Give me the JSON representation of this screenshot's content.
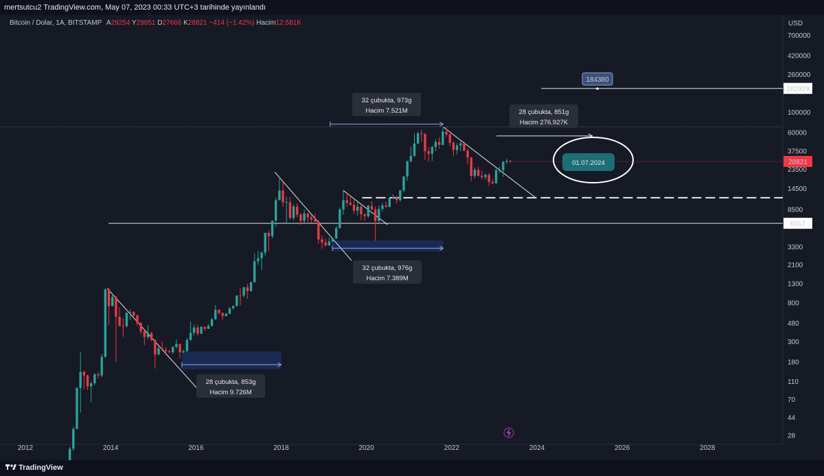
{
  "header": {
    "publisher_line": "mertsutcu2 TradingView.com, May 07, 2023 00:33 UTC+3 tarihinde yayınlandı"
  },
  "legend": {
    "symbol": "Bitcoin / Dolar, 1A, BITSTAMP",
    "open_label": "A",
    "open": "29254",
    "high_label": "Y",
    "high": "29851",
    "low_label": "D",
    "low": "27666",
    "close_label": "K",
    "close": "28821",
    "change": "−414 (−1.42%)",
    "volume_label": "Hacim",
    "volume": "12.581K"
  },
  "footer": {
    "brand": "TradingView"
  },
  "colors": {
    "background": "#161a25",
    "up": "#26a69a",
    "down": "#f23645",
    "line": "#e6e8ee",
    "range_fill": "#1f3a7a",
    "badge_teal": "#1e6e75"
  },
  "annotations": {
    "top_range": [
      "32 çubukta, 973g",
      "Hacim 7.521M"
    ],
    "right_range": [
      "28 çubukta, 851g",
      "Hacim 276.927K"
    ],
    "mid_range": [
      "32 çubukta, 976g",
      "Hacim 7.389M"
    ],
    "low_range": [
      "28 çubukta, 853g",
      "Hacim 9.726M"
    ],
    "target_price": "184380",
    "date_badge": "01.07.2024",
    "price_182929": "182929",
    "price_28821": "28821",
    "price_6017": "6017"
  },
  "chart_data": {
    "type": "candlestick",
    "scale": "log",
    "y_axis_title": "USD",
    "y_ticks": [
      "700000",
      "420000",
      "260000",
      "100000",
      "60000",
      "37500",
      "23500",
      "14500",
      "8500",
      "3300",
      "2100",
      "1300",
      "800",
      "480",
      "300",
      "180",
      "110",
      "70",
      "44",
      "28"
    ],
    "x_ticks": [
      "2012",
      "2014",
      "2016",
      "2018",
      "2020",
      "2022",
      "2024",
      "2026",
      "2028"
    ],
    "grid": false,
    "legend_position": "top-left",
    "series": [
      {
        "date": "2013-01",
        "open": 13,
        "high": 21,
        "low": 13,
        "close": 20
      },
      {
        "date": "2013-02",
        "open": 20,
        "high": 35,
        "low": 19,
        "close": 33
      },
      {
        "date": "2013-03",
        "open": 33,
        "high": 95,
        "low": 33,
        "close": 93
      },
      {
        "date": "2013-04",
        "open": 93,
        "high": 230,
        "low": 50,
        "close": 140
      },
      {
        "date": "2013-05",
        "open": 140,
        "high": 145,
        "low": 90,
        "close": 128
      },
      {
        "date": "2013-06",
        "open": 128,
        "high": 130,
        "low": 88,
        "close": 97
      },
      {
        "date": "2013-07",
        "open": 97,
        "high": 110,
        "low": 65,
        "close": 105
      },
      {
        "date": "2013-08",
        "open": 105,
        "high": 135,
        "low": 100,
        "close": 132
      },
      {
        "date": "2013-09",
        "open": 132,
        "high": 140,
        "low": 118,
        "close": 128
      },
      {
        "date": "2013-10",
        "open": 128,
        "high": 220,
        "low": 122,
        "close": 205
      },
      {
        "date": "2013-11",
        "open": 205,
        "high": 1160,
        "low": 200,
        "close": 1130
      },
      {
        "date": "2013-12",
        "open": 1130,
        "high": 1165,
        "low": 460,
        "close": 740
      },
      {
        "date": "2014-01",
        "open": 740,
        "high": 1020,
        "low": 740,
        "close": 935
      },
      {
        "date": "2014-02",
        "open": 935,
        "high": 955,
        "low": 180,
        "close": 565
      },
      {
        "date": "2014-03",
        "open": 565,
        "high": 720,
        "low": 440,
        "close": 450
      },
      {
        "date": "2014-04",
        "open": 450,
        "high": 545,
        "low": 340,
        "close": 445
      },
      {
        "date": "2014-05",
        "open": 445,
        "high": 630,
        "low": 430,
        "close": 625
      },
      {
        "date": "2014-06",
        "open": 625,
        "high": 680,
        "low": 520,
        "close": 635
      },
      {
        "date": "2014-07",
        "open": 635,
        "high": 650,
        "low": 560,
        "close": 585
      },
      {
        "date": "2014-08",
        "open": 585,
        "high": 600,
        "low": 450,
        "close": 480
      },
      {
        "date": "2014-09",
        "open": 480,
        "high": 500,
        "low": 365,
        "close": 390
      },
      {
        "date": "2014-10",
        "open": 390,
        "high": 415,
        "low": 275,
        "close": 338
      },
      {
        "date": "2014-11",
        "open": 338,
        "high": 460,
        "low": 320,
        "close": 375
      },
      {
        "date": "2014-12",
        "open": 375,
        "high": 385,
        "low": 305,
        "close": 315
      },
      {
        "date": "2015-01",
        "open": 315,
        "high": 320,
        "low": 152,
        "close": 218
      },
      {
        "date": "2015-02",
        "open": 218,
        "high": 265,
        "low": 212,
        "close": 254
      },
      {
        "date": "2015-03",
        "open": 254,
        "high": 300,
        "low": 240,
        "close": 244
      },
      {
        "date": "2015-04",
        "open": 244,
        "high": 260,
        "low": 215,
        "close": 236
      },
      {
        "date": "2015-05",
        "open": 236,
        "high": 245,
        "low": 226,
        "close": 230
      },
      {
        "date": "2015-06",
        "open": 230,
        "high": 268,
        "low": 220,
        "close": 263
      },
      {
        "date": "2015-07",
        "open": 263,
        "high": 318,
        "low": 252,
        "close": 284
      },
      {
        "date": "2015-08",
        "open": 284,
        "high": 285,
        "low": 198,
        "close": 230
      },
      {
        "date": "2015-09",
        "open": 230,
        "high": 245,
        "low": 226,
        "close": 236
      },
      {
        "date": "2015-10",
        "open": 236,
        "high": 330,
        "low": 235,
        "close": 314
      },
      {
        "date": "2015-11",
        "open": 314,
        "high": 500,
        "low": 305,
        "close": 377
      },
      {
        "date": "2015-12",
        "open": 377,
        "high": 465,
        "low": 350,
        "close": 430
      },
      {
        "date": "2016-01",
        "open": 430,
        "high": 462,
        "low": 350,
        "close": 368
      },
      {
        "date": "2016-02",
        "open": 368,
        "high": 445,
        "low": 365,
        "close": 437
      },
      {
        "date": "2016-03",
        "open": 437,
        "high": 440,
        "low": 396,
        "close": 416
      },
      {
        "date": "2016-04",
        "open": 416,
        "high": 466,
        "low": 415,
        "close": 448
      },
      {
        "date": "2016-05",
        "open": 448,
        "high": 550,
        "low": 440,
        "close": 530
      },
      {
        "date": "2016-06",
        "open": 530,
        "high": 760,
        "low": 525,
        "close": 673
      },
      {
        "date": "2016-07",
        "open": 673,
        "high": 685,
        "low": 600,
        "close": 624
      },
      {
        "date": "2016-08",
        "open": 624,
        "high": 625,
        "low": 525,
        "close": 575
      },
      {
        "date": "2016-09",
        "open": 575,
        "high": 625,
        "low": 570,
        "close": 609
      },
      {
        "date": "2016-10",
        "open": 609,
        "high": 720,
        "low": 605,
        "close": 701
      },
      {
        "date": "2016-11",
        "open": 701,
        "high": 755,
        "low": 680,
        "close": 742
      },
      {
        "date": "2016-12",
        "open": 742,
        "high": 975,
        "low": 740,
        "close": 966
      },
      {
        "date": "2017-01",
        "open": 966,
        "high": 1160,
        "low": 750,
        "close": 965
      },
      {
        "date": "2017-02",
        "open": 965,
        "high": 1200,
        "low": 920,
        "close": 1190
      },
      {
        "date": "2017-03",
        "open": 1190,
        "high": 1300,
        "low": 890,
        "close": 1080
      },
      {
        "date": "2017-04",
        "open": 1080,
        "high": 1380,
        "low": 1070,
        "close": 1350
      },
      {
        "date": "2017-05",
        "open": 1350,
        "high": 2800,
        "low": 1350,
        "close": 2300
      },
      {
        "date": "2017-06",
        "open": 2300,
        "high": 3000,
        "low": 2100,
        "close": 2480
      },
      {
        "date": "2017-07",
        "open": 2480,
        "high": 2950,
        "low": 1830,
        "close": 2870
      },
      {
        "date": "2017-08",
        "open": 2870,
        "high": 4500,
        "low": 2670,
        "close": 4730
      },
      {
        "date": "2017-09",
        "open": 4730,
        "high": 5000,
        "low": 2970,
        "close": 4340
      },
      {
        "date": "2017-10",
        "open": 4340,
        "high": 6450,
        "low": 4100,
        "close": 6450
      },
      {
        "date": "2017-11",
        "open": 6450,
        "high": 11500,
        "low": 5500,
        "close": 10800
      },
      {
        "date": "2017-12",
        "open": 10800,
        "high": 19700,
        "low": 10800,
        "close": 13800
      },
      {
        "date": "2018-01",
        "open": 13800,
        "high": 17200,
        "low": 9200,
        "close": 10200
      },
      {
        "date": "2018-02",
        "open": 10200,
        "high": 11800,
        "low": 5900,
        "close": 10300
      },
      {
        "date": "2018-03",
        "open": 10300,
        "high": 11700,
        "low": 6600,
        "close": 6900
      },
      {
        "date": "2018-04",
        "open": 6900,
        "high": 9750,
        "low": 6450,
        "close": 9200
      },
      {
        "date": "2018-05",
        "open": 9200,
        "high": 10000,
        "low": 7000,
        "close": 7500
      },
      {
        "date": "2018-06",
        "open": 7500,
        "high": 7750,
        "low": 5800,
        "close": 6400
      },
      {
        "date": "2018-07",
        "open": 6400,
        "high": 8500,
        "low": 6100,
        "close": 7700
      },
      {
        "date": "2018-08",
        "open": 7700,
        "high": 7800,
        "low": 5880,
        "close": 7000
      },
      {
        "date": "2018-09",
        "open": 7000,
        "high": 7400,
        "low": 6100,
        "close": 6600
      },
      {
        "date": "2018-10",
        "open": 6600,
        "high": 7600,
        "low": 6200,
        "close": 6300
      },
      {
        "date": "2018-11",
        "open": 6300,
        "high": 6600,
        "low": 3600,
        "close": 4000
      },
      {
        "date": "2018-12",
        "open": 4000,
        "high": 4400,
        "low": 3150,
        "close": 3700
      },
      {
        "date": "2019-01",
        "open": 3700,
        "high": 4100,
        "low": 3350,
        "close": 3440
      },
      {
        "date": "2019-02",
        "open": 3440,
        "high": 4200,
        "low": 3400,
        "close": 3800
      },
      {
        "date": "2019-03",
        "open": 3800,
        "high": 4150,
        "low": 3700,
        "close": 4100
      },
      {
        "date": "2019-04",
        "open": 4100,
        "high": 5600,
        "low": 4050,
        "close": 5300
      },
      {
        "date": "2019-05",
        "open": 5300,
        "high": 9000,
        "low": 5300,
        "close": 8550
      },
      {
        "date": "2019-06",
        "open": 8550,
        "high": 13900,
        "low": 7500,
        "close": 10800
      },
      {
        "date": "2019-07",
        "open": 10800,
        "high": 13200,
        "low": 9100,
        "close": 10100
      },
      {
        "date": "2019-08",
        "open": 10100,
        "high": 12300,
        "low": 9400,
        "close": 9600
      },
      {
        "date": "2019-09",
        "open": 9600,
        "high": 10900,
        "low": 7700,
        "close": 8300
      },
      {
        "date": "2019-10",
        "open": 8300,
        "high": 10400,
        "low": 7300,
        "close": 9150
      },
      {
        "date": "2019-11",
        "open": 9150,
        "high": 9500,
        "low": 6550,
        "close": 7550
      },
      {
        "date": "2019-12",
        "open": 7550,
        "high": 7750,
        "low": 6400,
        "close": 7200
      },
      {
        "date": "2020-01",
        "open": 7200,
        "high": 9600,
        "low": 6900,
        "close": 9350
      },
      {
        "date": "2020-02",
        "open": 9350,
        "high": 10500,
        "low": 8400,
        "close": 8550
      },
      {
        "date": "2020-03",
        "open": 8550,
        "high": 9200,
        "low": 3850,
        "close": 6400
      },
      {
        "date": "2020-04",
        "open": 6400,
        "high": 9450,
        "low": 6150,
        "close": 8650
      },
      {
        "date": "2020-05",
        "open": 8650,
        "high": 10100,
        "low": 8100,
        "close": 9450
      },
      {
        "date": "2020-06",
        "open": 9450,
        "high": 10400,
        "low": 8900,
        "close": 9150
      },
      {
        "date": "2020-07",
        "open": 9150,
        "high": 11450,
        "low": 8950,
        "close": 11350
      },
      {
        "date": "2020-08",
        "open": 11350,
        "high": 12500,
        "low": 11100,
        "close": 11650
      },
      {
        "date": "2020-09",
        "open": 11650,
        "high": 12100,
        "low": 9850,
        "close": 10800
      },
      {
        "date": "2020-10",
        "open": 10800,
        "high": 14100,
        "low": 10400,
        "close": 13800
      },
      {
        "date": "2020-11",
        "open": 13800,
        "high": 19500,
        "low": 13200,
        "close": 19700
      },
      {
        "date": "2020-12",
        "open": 19700,
        "high": 29300,
        "low": 17600,
        "close": 28950
      },
      {
        "date": "2021-01",
        "open": 28950,
        "high": 41950,
        "low": 28100,
        "close": 33100
      },
      {
        "date": "2021-02",
        "open": 33100,
        "high": 58300,
        "low": 32300,
        "close": 45200
      },
      {
        "date": "2021-03",
        "open": 45200,
        "high": 61700,
        "low": 44900,
        "close": 58800
      },
      {
        "date": "2021-04",
        "open": 58800,
        "high": 64900,
        "low": 47000,
        "close": 57700
      },
      {
        "date": "2021-05",
        "open": 57700,
        "high": 59500,
        "low": 30000,
        "close": 37300
      },
      {
        "date": "2021-06",
        "open": 37300,
        "high": 41300,
        "low": 28800,
        "close": 35000
      },
      {
        "date": "2021-07",
        "open": 35000,
        "high": 42300,
        "low": 29300,
        "close": 41500
      },
      {
        "date": "2021-08",
        "open": 41500,
        "high": 50500,
        "low": 37300,
        "close": 47100
      },
      {
        "date": "2021-09",
        "open": 47100,
        "high": 52900,
        "low": 39600,
        "close": 43800
      },
      {
        "date": "2021-10",
        "open": 43800,
        "high": 67000,
        "low": 43200,
        "close": 61300
      },
      {
        "date": "2021-11",
        "open": 61300,
        "high": 69000,
        "low": 53300,
        "close": 57000
      },
      {
        "date": "2021-12",
        "open": 57000,
        "high": 59000,
        "low": 42000,
        "close": 46200
      },
      {
        "date": "2022-01",
        "open": 46200,
        "high": 47900,
        "low": 33000,
        "close": 38500
      },
      {
        "date": "2022-02",
        "open": 38500,
        "high": 45800,
        "low": 34300,
        "close": 43200
      },
      {
        "date": "2022-03",
        "open": 43200,
        "high": 48200,
        "low": 37200,
        "close": 45500
      },
      {
        "date": "2022-04",
        "open": 45500,
        "high": 47400,
        "low": 37600,
        "close": 37700
      },
      {
        "date": "2022-05",
        "open": 37700,
        "high": 40000,
        "low": 26700,
        "close": 31800
      },
      {
        "date": "2022-06",
        "open": 31800,
        "high": 31900,
        "low": 17600,
        "close": 19950
      },
      {
        "date": "2022-07",
        "open": 19950,
        "high": 24700,
        "low": 18800,
        "close": 23300
      },
      {
        "date": "2022-08",
        "open": 23300,
        "high": 25200,
        "low": 19600,
        "close": 20050
      },
      {
        "date": "2022-09",
        "open": 20050,
        "high": 22800,
        "low": 18200,
        "close": 19400
      },
      {
        "date": "2022-10",
        "open": 19400,
        "high": 21100,
        "low": 18200,
        "close": 20500
      },
      {
        "date": "2022-11",
        "open": 20500,
        "high": 21500,
        "low": 15500,
        "close": 17150
      },
      {
        "date": "2022-12",
        "open": 17150,
        "high": 18400,
        "low": 16300,
        "close": 16550
      },
      {
        "date": "2023-01",
        "open": 16550,
        "high": 23950,
        "low": 16500,
        "close": 23150
      },
      {
        "date": "2023-02",
        "open": 23150,
        "high": 25250,
        "low": 21400,
        "close": 23150
      },
      {
        "date": "2023-03",
        "open": 23150,
        "high": 29200,
        "low": 19550,
        "close": 28500
      },
      {
        "date": "2023-04",
        "open": 28500,
        "high": 31000,
        "low": 26900,
        "close": 29250
      },
      {
        "date": "2023-05",
        "open": 29254,
        "high": 29851,
        "low": 27666,
        "close": 28821
      }
    ]
  }
}
